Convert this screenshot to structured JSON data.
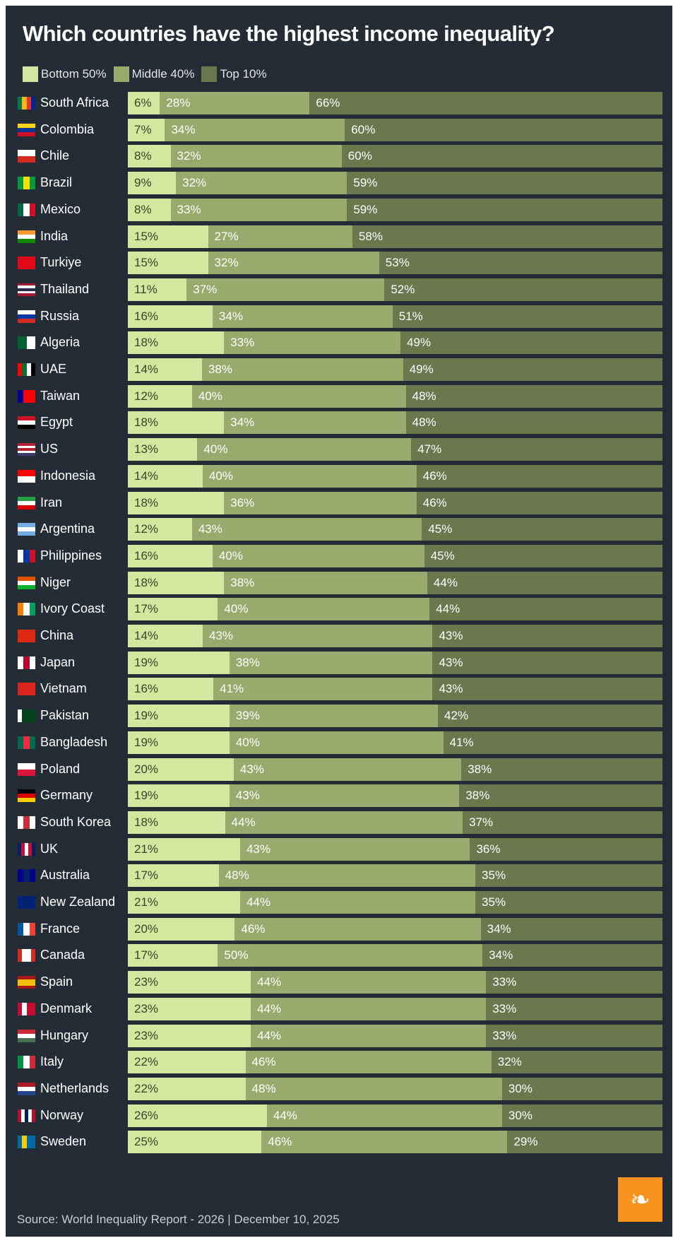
{
  "chart_data": {
    "type": "bar",
    "orientation": "horizontal",
    "stacked": true,
    "title": "Which countries have the highest income inequality?",
    "legend_position": "top-left",
    "grid": false,
    "colors": {
      "bottom": "#d1e89e",
      "middle": "#98ab6c",
      "top": "#6b774c",
      "background": "#242c36"
    },
    "series": [
      {
        "name": "Bottom 50%"
      },
      {
        "name": "Middle 40%"
      },
      {
        "name": "Top 10%"
      }
    ],
    "rows": [
      {
        "country": "South Africa",
        "values": [
          6,
          28,
          66
        ],
        "flag": [
          "#007a4d",
          "#ffb612",
          "#de3831",
          "#002395"
        ]
      },
      {
        "country": "Colombia",
        "values": [
          7,
          34,
          60
        ],
        "flag": [
          "#fcd116",
          "#003893",
          "#ce1126"
        ],
        "dir": "h"
      },
      {
        "country": "Chile",
        "values": [
          8,
          32,
          60
        ],
        "flag": [
          "#ffffff",
          "#d52b1e"
        ],
        "dir": "h"
      },
      {
        "country": "Brazil",
        "values": [
          9,
          32,
          59
        ],
        "flag": [
          "#009c3b",
          "#ffdf00",
          "#009c3b"
        ]
      },
      {
        "country": "Mexico",
        "values": [
          8,
          33,
          59
        ],
        "flag": [
          "#006847",
          "#ffffff",
          "#ce1126"
        ]
      },
      {
        "country": "India",
        "values": [
          15,
          27,
          58
        ],
        "flag": [
          "#ff9933",
          "#ffffff",
          "#138808"
        ],
        "dir": "h"
      },
      {
        "country": "Turkiye",
        "values": [
          15,
          32,
          53
        ],
        "flag": [
          "#e30a17"
        ]
      },
      {
        "country": "Thailand",
        "values": [
          11,
          37,
          52
        ],
        "flag": [
          "#a51931",
          "#f4f5f8",
          "#2d2a4a",
          "#f4f5f8",
          "#a51931"
        ],
        "dir": "h"
      },
      {
        "country": "Russia",
        "values": [
          16,
          34,
          51
        ],
        "flag": [
          "#ffffff",
          "#0039a6",
          "#d52b1e"
        ],
        "dir": "h"
      },
      {
        "country": "Algeria",
        "values": [
          18,
          33,
          49
        ],
        "flag": [
          "#006233",
          "#ffffff"
        ]
      },
      {
        "country": "UAE",
        "values": [
          14,
          38,
          49
        ],
        "flag": [
          "#ff0000",
          "#00732f",
          "#ffffff",
          "#000000"
        ]
      },
      {
        "country": "Taiwan",
        "values": [
          12,
          40,
          48
        ],
        "flag": [
          "#000095",
          "#fe0000",
          "#fe0000"
        ]
      },
      {
        "country": "Egypt",
        "values": [
          18,
          34,
          48
        ],
        "flag": [
          "#ce1126",
          "#ffffff",
          "#000000"
        ],
        "dir": "h"
      },
      {
        "country": "US",
        "values": [
          13,
          40,
          47
        ],
        "flag": [
          "#b22234",
          "#ffffff",
          "#b22234",
          "#ffffff",
          "#3c3b6e"
        ],
        "dir": "h"
      },
      {
        "country": "Indonesia",
        "values": [
          14,
          40,
          46
        ],
        "flag": [
          "#ff0000",
          "#ffffff"
        ],
        "dir": "h"
      },
      {
        "country": "Iran",
        "values": [
          18,
          36,
          46
        ],
        "flag": [
          "#239f40",
          "#ffffff",
          "#da0000"
        ],
        "dir": "h"
      },
      {
        "country": "Argentina",
        "values": [
          12,
          43,
          45
        ],
        "flag": [
          "#74acdf",
          "#ffffff",
          "#74acdf"
        ],
        "dir": "h"
      },
      {
        "country": "Philippines",
        "values": [
          16,
          40,
          45
        ],
        "flag": [
          "#ffffff",
          "#0038a8",
          "#ce1126"
        ]
      },
      {
        "country": "Niger",
        "values": [
          18,
          38,
          44
        ],
        "flag": [
          "#e05206",
          "#ffffff",
          "#0db02b"
        ],
        "dir": "h"
      },
      {
        "country": "Ivory Coast",
        "values": [
          17,
          40,
          44
        ],
        "flag": [
          "#f77f00",
          "#ffffff",
          "#009e60"
        ]
      },
      {
        "country": "China",
        "values": [
          14,
          43,
          43
        ],
        "flag": [
          "#de2910"
        ]
      },
      {
        "country": "Japan",
        "values": [
          19,
          38,
          43
        ],
        "flag": [
          "#ffffff",
          "#bc002d",
          "#ffffff"
        ]
      },
      {
        "country": "Vietnam",
        "values": [
          16,
          41,
          43
        ],
        "flag": [
          "#da251d"
        ]
      },
      {
        "country": "Pakistan",
        "values": [
          19,
          39,
          42
        ],
        "flag": [
          "#ffffff",
          "#01411c",
          "#01411c",
          "#01411c"
        ]
      },
      {
        "country": "Bangladesh",
        "values": [
          19,
          40,
          41
        ],
        "flag": [
          "#006a4e",
          "#f42a41",
          "#006a4e"
        ]
      },
      {
        "country": "Poland",
        "values": [
          20,
          43,
          38
        ],
        "flag": [
          "#ffffff",
          "#dc143c"
        ],
        "dir": "h"
      },
      {
        "country": "Germany",
        "values": [
          19,
          43,
          38
        ],
        "flag": [
          "#000000",
          "#dd0000",
          "#ffce00"
        ],
        "dir": "h"
      },
      {
        "country": "South Korea",
        "values": [
          18,
          44,
          37
        ],
        "flag": [
          "#ffffff",
          "#cd2e3a",
          "#ffffff"
        ]
      },
      {
        "country": "UK",
        "values": [
          21,
          43,
          36
        ],
        "flag": [
          "#012169",
          "#c8102e",
          "#ffffff",
          "#c8102e",
          "#012169"
        ]
      },
      {
        "country": "Australia",
        "values": [
          17,
          48,
          35
        ],
        "flag": [
          "#00008b",
          "#012169",
          "#00008b"
        ]
      },
      {
        "country": "New Zealand",
        "values": [
          21,
          44,
          35
        ],
        "flag": [
          "#00247d",
          "#012169",
          "#00247d"
        ]
      },
      {
        "country": "France",
        "values": [
          20,
          46,
          34
        ],
        "flag": [
          "#0055a4",
          "#ffffff",
          "#ef4135"
        ]
      },
      {
        "country": "Canada",
        "values": [
          17,
          50,
          34
        ],
        "flag": [
          "#d52b1e",
          "#ffffff",
          "#ffffff",
          "#d52b1e"
        ]
      },
      {
        "country": "Spain",
        "values": [
          23,
          44,
          33
        ],
        "flag": [
          "#aa151b",
          "#f1bf00",
          "#f1bf00",
          "#aa151b"
        ],
        "dir": "h"
      },
      {
        "country": "Denmark",
        "values": [
          23,
          44,
          33
        ],
        "flag": [
          "#c60c30",
          "#ffffff",
          "#c60c30",
          "#c60c30"
        ]
      },
      {
        "country": "Hungary",
        "values": [
          23,
          44,
          33
        ],
        "flag": [
          "#ce2939",
          "#ffffff",
          "#477050"
        ],
        "dir": "h"
      },
      {
        "country": "Italy",
        "values": [
          22,
          46,
          32
        ],
        "flag": [
          "#009246",
          "#ffffff",
          "#ce2b37"
        ]
      },
      {
        "country": "Netherlands",
        "values": [
          22,
          48,
          30
        ],
        "flag": [
          "#ae1c28",
          "#ffffff",
          "#21468b"
        ],
        "dir": "h"
      },
      {
        "country": "Norway",
        "values": [
          26,
          44,
          30
        ],
        "flag": [
          "#ba0c2f",
          "#ffffff",
          "#00205b",
          "#ffffff",
          "#ba0c2f"
        ]
      },
      {
        "country": "Sweden",
        "values": [
          25,
          46,
          29
        ],
        "flag": [
          "#006aa7",
          "#fecc00",
          "#006aa7",
          "#006aa7"
        ]
      }
    ]
  },
  "footer": {
    "source": "Source: World Inequality Report - 2026 | December 10, 2025",
    "logo": "Al Jazeera",
    "logo_icon": "al-jazeera-logo-icon",
    "logo_color": "#f7931e"
  }
}
